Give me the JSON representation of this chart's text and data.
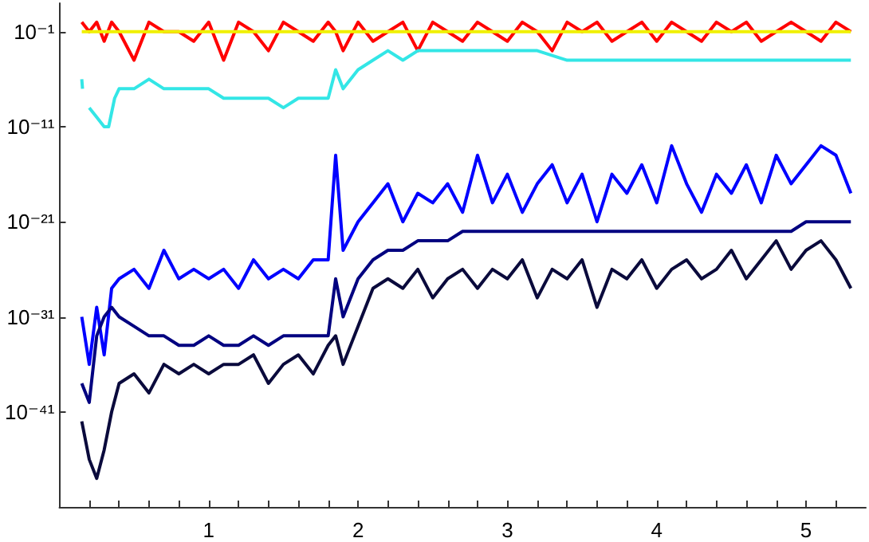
{
  "chart_data": {
    "type": "line",
    "log": true,
    "grid": false,
    "xlim": [
      0,
      5.4
    ],
    "ylim": [
      1e-51,
      100
    ],
    "xticks": [
      {
        "value": 0.2,
        "label": null
      },
      {
        "value": 0.4,
        "label": null
      },
      {
        "value": 0.6,
        "label": null
      },
      {
        "value": 0.8,
        "label": null
      },
      1,
      {
        "value": 1.2,
        "label": null
      },
      {
        "value": 1.4,
        "label": null
      },
      {
        "value": 1.6,
        "label": null
      },
      {
        "value": 1.8,
        "label": null
      },
      2,
      {
        "value": 2.2,
        "label": null
      },
      {
        "value": 2.4,
        "label": null
      },
      {
        "value": 2.6,
        "label": null
      },
      {
        "value": 2.8,
        "label": null
      },
      3,
      {
        "value": 3.2,
        "label": null
      },
      {
        "value": 3.4,
        "label": null
      },
      {
        "value": 3.6,
        "label": null
      },
      {
        "value": 3.8,
        "label": null
      },
      4,
      {
        "value": 4.2,
        "label": null
      },
      {
        "value": 4.4,
        "label": null
      },
      {
        "value": 4.6,
        "label": null
      },
      {
        "value": 4.8,
        "label": null
      },
      5,
      {
        "value": 5.2,
        "label": null
      }
    ],
    "yticks": [
      {
        "value": 1e-41,
        "label": "10⁻⁴¹"
      },
      {
        "value": 1e-31,
        "label": "10⁻³¹"
      },
      {
        "value": 1e-21,
        "label": "10⁻²¹"
      },
      {
        "value": 1e-11,
        "label": "10⁻¹¹"
      },
      {
        "value": 0.1,
        "label": "10⁻¹"
      }
    ],
    "x": [
      0.15,
      0.2,
      0.25,
      0.3,
      0.35,
      0.4,
      0.5,
      0.6,
      0.7,
      0.8,
      0.9,
      1.0,
      1.1,
      1.2,
      1.3,
      1.4,
      1.5,
      1.6,
      1.7,
      1.8,
      1.85,
      1.9,
      2.0,
      2.1,
      2.2,
      2.3,
      2.4,
      2.5,
      2.6,
      2.7,
      2.8,
      2.9,
      3.0,
      3.1,
      3.2,
      3.3,
      3.4,
      3.5,
      3.6,
      3.7,
      3.8,
      3.9,
      4.0,
      4.1,
      4.2,
      4.3,
      4.4,
      4.5,
      4.6,
      4.7,
      4.8,
      4.9,
      5.0,
      5.1,
      5.2,
      5.3
    ],
    "series": [
      {
        "color": "#ff0000",
        "values": [
          1,
          0.1,
          1,
          0.01,
          1,
          0.1,
          0.0001,
          1,
          0.1,
          0.1,
          0.01,
          1,
          0.0001,
          1,
          0.1,
          0.001,
          1,
          0.1,
          0.01,
          1,
          0.1,
          0.001,
          1,
          0.01,
          0.1,
          1,
          0.001,
          1,
          0.1,
          0.01,
          1,
          0.1,
          0.01,
          1,
          0.1,
          0.001,
          1,
          0.1,
          1,
          0.01,
          0.1,
          1,
          0.01,
          1,
          0.1,
          0.01,
          1,
          0.1,
          1,
          0.01,
          0.1,
          1,
          0.1,
          0.01,
          1,
          0.1
        ]
      },
      {
        "color": "#f0f000",
        "x": [
          0.15,
          5.3
        ],
        "values": [
          0.1,
          0.1
        ]
      },
      {
        "color": "#33e6e6",
        "x": [
          0.15,
          0.155,
          0.17,
          0.2,
          0.25,
          0.3,
          0.33,
          0.37,
          0.4,
          0.5,
          0.6,
          0.7,
          0.8,
          0.9,
          1.0,
          1.1,
          1.2,
          1.3,
          1.4,
          1.5,
          1.6,
          1.7,
          1.8,
          1.85,
          1.9,
          2.0,
          2.1,
          2.2,
          2.3,
          2.4,
          2.5,
          2.6,
          2.7,
          2.8,
          2.9,
          3.0,
          3.2,
          3.4,
          3.6,
          3.8,
          4.0,
          4.2,
          4.4,
          4.6,
          4.8,
          5.0,
          5.2,
          5.3
        ],
        "values": [
          1e-06,
          1e-07,
          null,
          1e-09,
          1e-10,
          1e-11,
          1e-11,
          1e-08,
          1e-07,
          1e-07,
          1e-06,
          1e-07,
          1e-07,
          1e-07,
          1e-07,
          1e-08,
          1e-08,
          1e-08,
          1e-08,
          1e-09,
          1e-08,
          1e-08,
          1e-08,
          1e-05,
          1e-07,
          1e-05,
          0.0001,
          0.001,
          0.0001,
          0.001,
          0.001,
          0.001,
          0.001,
          0.001,
          0.001,
          0.001,
          0.001,
          0.0001,
          0.0001,
          0.0001,
          0.0001,
          0.0001,
          0.0001,
          0.0001,
          0.0001,
          0.0001,
          0.0001,
          0.0001
        ]
      },
      {
        "color": "#0000ff",
        "values": [
          1e-31,
          1e-36,
          1e-30,
          1e-35,
          1e-28,
          1e-27,
          1e-26,
          1e-28,
          1e-24,
          1e-27,
          1e-26,
          1e-27,
          1e-26,
          1e-28,
          1e-25,
          1e-27,
          1e-26,
          1e-27,
          1e-25,
          1e-25,
          1e-14,
          1e-24,
          1e-21,
          1e-19,
          1e-17,
          1e-21,
          1e-18,
          1e-19,
          1e-17,
          1e-20,
          1e-14,
          1e-19,
          1e-16,
          1e-20,
          1e-17,
          1e-15,
          1e-19,
          1e-16,
          1e-21,
          1e-16,
          1e-18,
          1e-15,
          1e-19,
          1e-13,
          1e-17,
          1e-20,
          1e-16,
          1e-18,
          1e-15,
          1e-19,
          1e-14,
          1e-17,
          1e-15,
          1e-13,
          1e-14,
          1e-18
        ]
      },
      {
        "color": "#000080",
        "values": [
          1e-38,
          1e-40,
          1e-33,
          1e-31,
          1e-30,
          1e-31,
          1e-32,
          1e-33,
          1e-33,
          1e-34,
          1e-34,
          1e-33,
          1e-34,
          1e-34,
          1e-33,
          1e-34,
          1e-33,
          1e-33,
          1e-33,
          1e-33,
          1e-27,
          1e-31,
          1e-27,
          1e-25,
          1e-24,
          1e-24,
          1e-23,
          1e-23,
          1e-23,
          1e-22,
          1e-22,
          1e-22,
          1e-22,
          1e-22,
          1e-22,
          1e-22,
          1e-22,
          1e-22,
          1e-22,
          1e-22,
          1e-22,
          1e-22,
          1e-22,
          1e-22,
          1e-22,
          1e-22,
          1e-22,
          1e-22,
          1e-22,
          1e-22,
          1e-22,
          1e-22,
          1e-21,
          1e-21,
          1e-21,
          1e-21
        ]
      },
      {
        "color": "#0a0a3c",
        "values": [
          1e-42,
          1e-46,
          1e-48,
          1e-45,
          1e-41,
          1e-38,
          1e-37,
          1e-39,
          1e-36,
          1e-37,
          1e-36,
          1e-37,
          1e-36,
          1e-36,
          1e-35,
          1e-38,
          1e-36,
          1e-35,
          1e-37,
          1e-34,
          1e-33,
          1e-36,
          1e-32,
          1e-28,
          1e-27,
          1e-28,
          1e-26,
          1e-29,
          1e-27,
          1e-26,
          1e-28,
          1e-26,
          1e-27,
          1e-25,
          1e-29,
          1e-26,
          1e-27,
          1e-25,
          1e-30,
          1e-26,
          1e-27,
          1e-25,
          1e-28,
          1e-26,
          1e-25,
          1e-27,
          1e-26,
          1e-24,
          1e-27,
          1e-25,
          1e-23,
          1e-26,
          1e-24,
          1e-23,
          1e-25,
          1e-28
        ]
      }
    ]
  }
}
